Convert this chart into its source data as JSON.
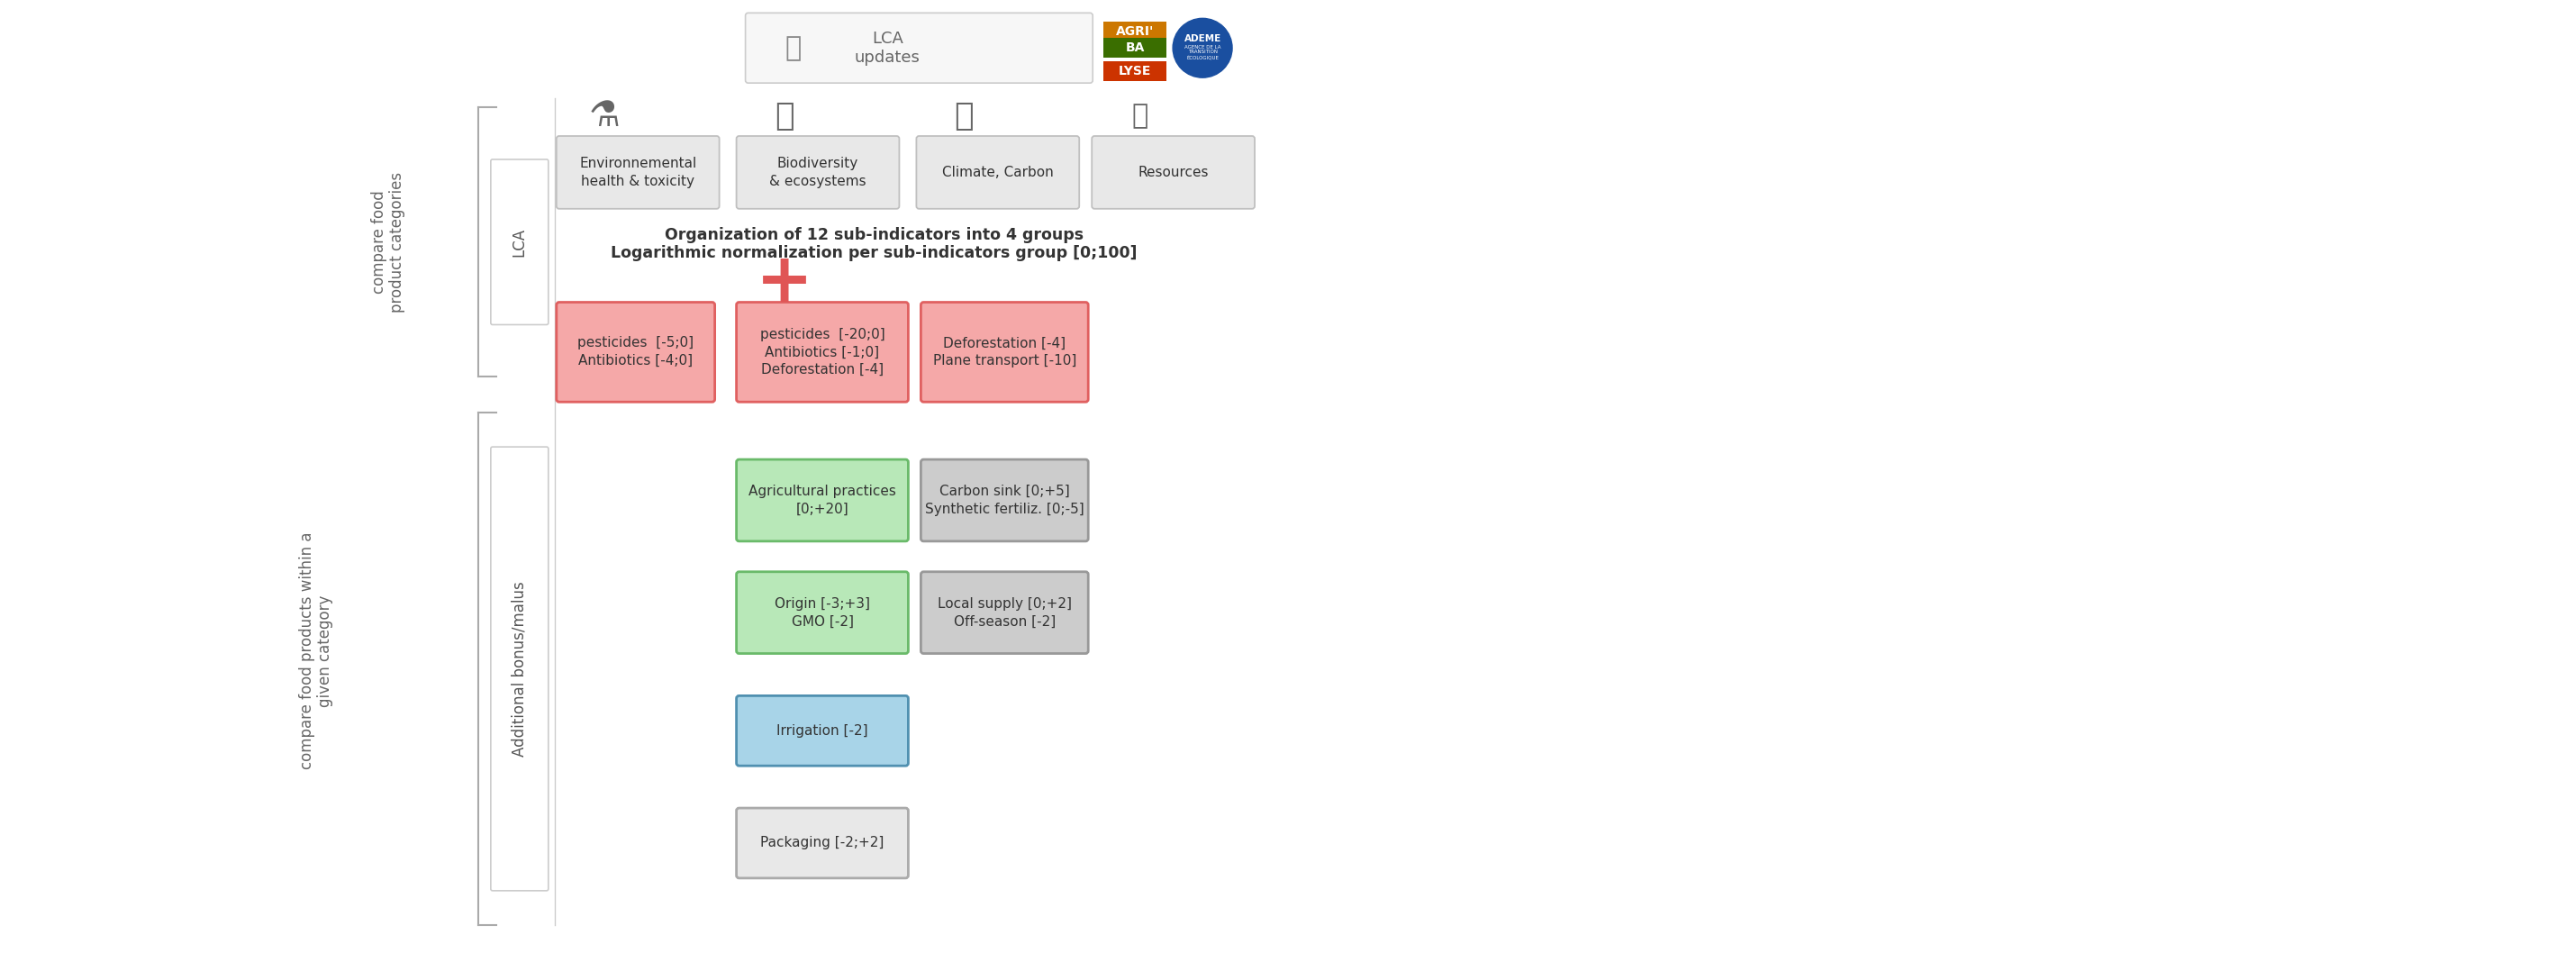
{
  "bg_color": "#ffffff",
  "title_text1": "Organization of 12 sub-indicators into 4 groups",
  "title_text2": "Logarithmic normalization per sub-indicators group [0;100]",
  "left_label_top": "compare food\nproduct categories",
  "left_label_bottom": "compare food products within a\ngiven category",
  "bottom_label": "Additional bonus/malus",
  "lca_box_label": "LCA",
  "lca_categories": [
    {
      "label": "Environnemental\nhealth & toxicity"
    },
    {
      "label": "Biodiversity\n& ecosystems"
    },
    {
      "label": "Climate, Carbon"
    },
    {
      "label": "Resources"
    }
  ],
  "agribalyse_colors": [
    "#cc7700",
    "#3a6e00",
    "#cc3300"
  ],
  "agribalyse_texts": [
    "AGRI'",
    "BA",
    "LYSE"
  ],
  "red_boxes": [
    {
      "label": "pesticides  [-5;0]\nAntibiotics [-4;0]"
    },
    {
      "label": "pesticides  [-20;0]\nAntibiotics [-1;0]\nDeforestation [-4]"
    },
    {
      "label": "Deforestation [-4]\nPlane transport [-10]"
    }
  ],
  "green_boxes": [
    {
      "label": "Agricultural practices\n[0;+20]"
    },
    {
      "label": "Origin [-3;+3]\nGMO [-2]"
    }
  ],
  "gray_dark_boxes": [
    {
      "label": "Carbon sink [0;+5]\nSynthetic fertiliz. [0;-5]"
    },
    {
      "label": "Local supply [0;+2]\nOff-season [-2]"
    }
  ],
  "blue_box": {
    "label": "Irrigation [-2]"
  },
  "neutral_box": {
    "label": "Packaging [-2;+2]"
  }
}
